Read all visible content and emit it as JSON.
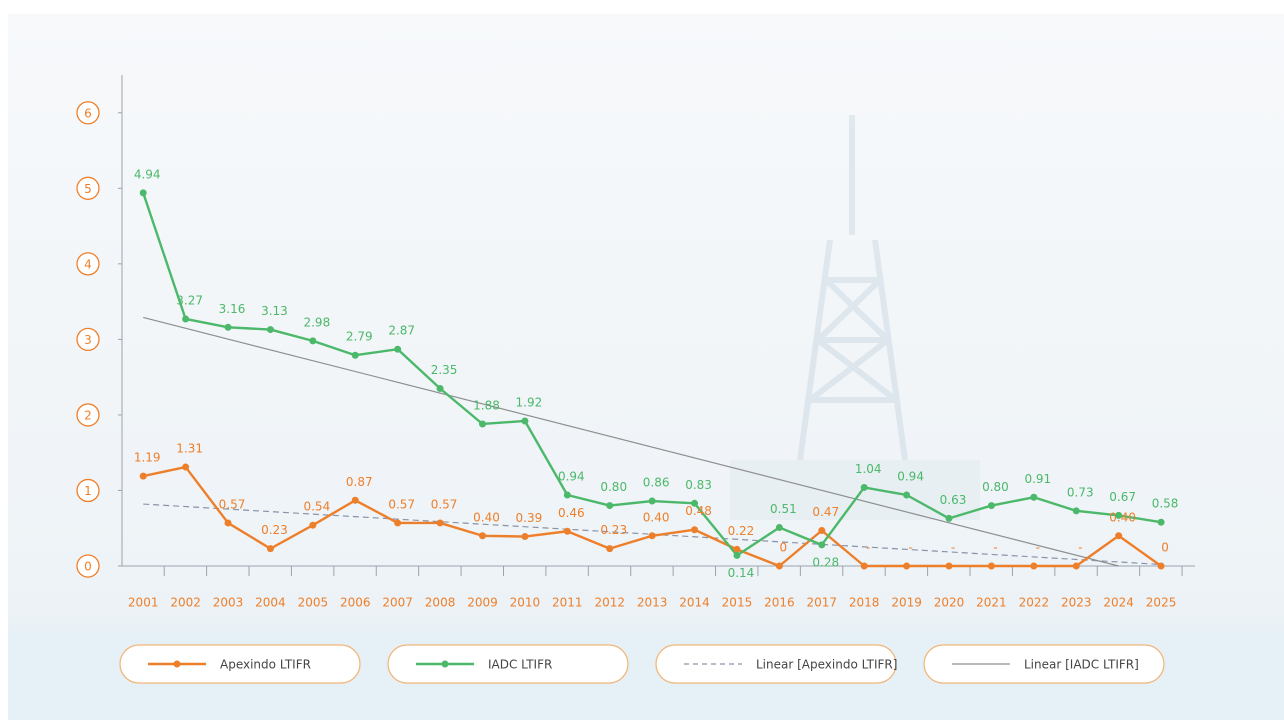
{
  "chart_data": {
    "type": "line",
    "x": [
      2001,
      2002,
      2003,
      2004,
      2005,
      2006,
      2007,
      2008,
      2009,
      2010,
      2011,
      2012,
      2013,
      2014,
      2015,
      2016,
      2017,
      2018,
      2019,
      2020,
      2021,
      2022,
      2023,
      2024,
      2025
    ],
    "xlim": [
      2000.5,
      2025.8
    ],
    "ylim": [
      0,
      6.5
    ],
    "yticks": [
      0,
      1,
      2,
      3,
      4,
      5,
      6
    ],
    "legend": "bottom",
    "series": [
      {
        "name": "Apexindo LTIFR",
        "color": "#ee7f2a",
        "values": [
          1.19,
          1.31,
          0.57,
          0.23,
          0.54,
          0.87,
          0.57,
          0.57,
          0.4,
          0.39,
          0.46,
          0.23,
          0.4,
          0.48,
          0.22,
          0,
          0.47,
          0,
          0,
          0,
          0,
          0,
          0,
          0.4,
          0
        ],
        "value_labels": [
          "1.19",
          "1.31",
          "0.57",
          "0.23",
          "0.54",
          "0.87",
          "0.57",
          "0.57",
          "0.40",
          "0.39",
          "0.46",
          "0.23",
          "0.40",
          "0.48",
          "0.22",
          "0",
          "0.47",
          "-",
          "-",
          "-",
          "-",
          "-",
          "-",
          "0.40",
          "0"
        ]
      },
      {
        "name": "IADC LTIFR",
        "color": "#4cb86a",
        "values": [
          4.94,
          3.27,
          3.16,
          3.13,
          2.98,
          2.79,
          2.87,
          2.35,
          1.88,
          1.92,
          0.94,
          0.8,
          0.86,
          0.83,
          0.14,
          0.51,
          0.28,
          1.04,
          0.94,
          0.63,
          0.8,
          0.91,
          0.73,
          0.67,
          0.58
        ],
        "value_labels": [
          "4.94",
          "3.27",
          "3.16",
          "3.13",
          "2.98",
          "2.79",
          "2.87",
          "2.35",
          "1.88",
          "1.92",
          "0.94",
          "0.80",
          "0.86",
          "0.83",
          "0.14",
          "0.51",
          "0.28",
          "1.04",
          "0.94",
          "0.63",
          "0.80",
          "0.91",
          "0.73",
          "0.67",
          "0.58"
        ]
      }
    ],
    "trendlines": [
      {
        "name": "Linear [Apexindo LTIFR]",
        "color": "#8a93a8",
        "dashed": true,
        "x": [
          2001,
          2025
        ],
        "values": [
          0.82,
          0.02
        ]
      },
      {
        "name": "Linear [IADC LTIFR]",
        "color": "#8f8f8f",
        "dashed": false,
        "x": [
          2001,
          2024
        ],
        "values": [
          3.29,
          0
        ]
      }
    ]
  }
}
